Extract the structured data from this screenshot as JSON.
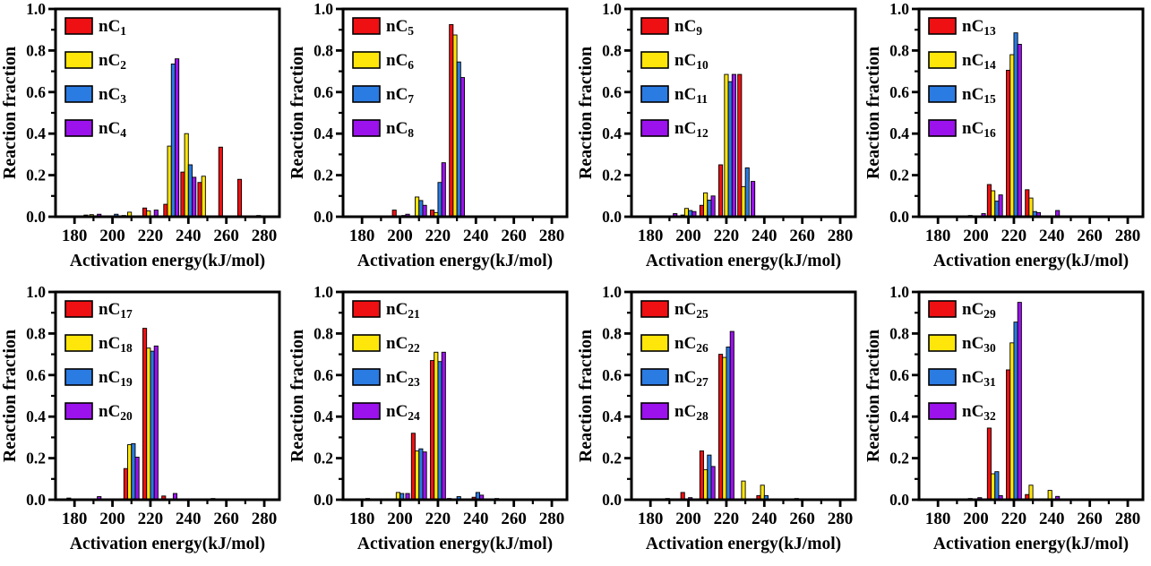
{
  "figure": {
    "description": "Eight-panel bar chart figure: reaction fraction vs activation energy distributions for n-alkanes nC1 through nC32",
    "background_color": "#FFFFFF",
    "text_color": "#000000"
  },
  "chart_data": {
    "type": "bar",
    "xlabel": "Activation energy(kJ/mol)",
    "ylabel": "Reaction fraction",
    "x_range": [
      170,
      288
    ],
    "x_major_ticks": [
      180,
      200,
      220,
      240,
      260,
      280
    ],
    "x_minor_ticks": [
      190,
      210,
      230,
      250,
      270
    ],
    "y_range": [
      0,
      1.0
    ],
    "y_major_ticks": [
      "0.0",
      "0.2",
      "0.4",
      "0.6",
      "0.8",
      "1.0"
    ],
    "y_minor_ticks": [
      0.1,
      0.3,
      0.5,
      0.7,
      0.9
    ],
    "grid": "off",
    "legend_position": "top-left-inside",
    "legend_prefix": "nC",
    "series_colors": [
      "#EE1012",
      "#FFE60A",
      "#2A7BE2",
      "#9B12EC"
    ],
    "bar_outline_color": "#000000",
    "bar_width_kJ": 2.0,
    "bars_format": [
      "x_kJ_per_mol",
      "series_index",
      "reaction_fraction"
    ],
    "panels": [
      {
        "name": "nC1-nC4",
        "legend_subs": [
          "1",
          "2",
          "3",
          "4"
        ],
        "bars": [
          [
            186,
            0,
            0.008
          ],
          [
            189,
            1,
            0.01
          ],
          [
            193,
            3,
            0.012
          ],
          [
            202,
            2,
            0.012
          ],
          [
            206,
            0,
            0.006
          ],
          [
            209,
            1,
            0.022
          ],
          [
            217,
            0,
            0.042
          ],
          [
            219,
            1,
            0.028
          ],
          [
            223,
            3,
            0.032
          ],
          [
            228,
            0,
            0.06
          ],
          [
            230,
            1,
            0.34
          ],
          [
            232,
            2,
            0.735
          ],
          [
            234,
            3,
            0.76
          ],
          [
            237,
            0,
            0.215
          ],
          [
            239,
            1,
            0.4
          ],
          [
            241,
            2,
            0.25
          ],
          [
            243,
            3,
            0.19
          ],
          [
            246,
            0,
            0.165
          ],
          [
            248,
            1,
            0.195
          ],
          [
            257,
            0,
            0.335
          ],
          [
            267,
            0,
            0.18
          ],
          [
            277,
            1,
            0.006
          ]
        ]
      },
      {
        "name": "nC5-nC8",
        "legend_subs": [
          "5",
          "6",
          "7",
          "8"
        ],
        "bars": [
          [
            197,
            0,
            0.032
          ],
          [
            202,
            2,
            0.006
          ],
          [
            204,
            3,
            0.012
          ],
          [
            209,
            1,
            0.095
          ],
          [
            211,
            2,
            0.078
          ],
          [
            213,
            3,
            0.055
          ],
          [
            217,
            0,
            0.032
          ],
          [
            219,
            1,
            0.02
          ],
          [
            221,
            2,
            0.165
          ],
          [
            223,
            3,
            0.26
          ],
          [
            227,
            0,
            0.925
          ],
          [
            229,
            1,
            0.875
          ],
          [
            231,
            2,
            0.745
          ],
          [
            233,
            3,
            0.67
          ]
        ]
      },
      {
        "name": "nC9-nC12",
        "legend_subs": [
          "9",
          "10",
          "11",
          "12"
        ],
        "bars": [
          [
            193,
            3,
            0.015
          ],
          [
            197,
            0,
            0.008
          ],
          [
            199,
            1,
            0.04
          ],
          [
            201,
            2,
            0.03
          ],
          [
            203,
            3,
            0.025
          ],
          [
            207,
            0,
            0.055
          ],
          [
            209,
            1,
            0.115
          ],
          [
            211,
            2,
            0.08
          ],
          [
            213,
            3,
            0.1
          ],
          [
            217,
            0,
            0.25
          ],
          [
            220,
            1,
            0.685
          ],
          [
            222,
            2,
            0.65
          ],
          [
            224,
            3,
            0.685
          ],
          [
            227,
            0,
            0.685
          ],
          [
            229,
            1,
            0.145
          ],
          [
            231,
            2,
            0.235
          ],
          [
            234,
            3,
            0.17
          ]
        ]
      },
      {
        "name": "nC13-nC16",
        "legend_subs": [
          "13",
          "14",
          "15",
          "16"
        ],
        "bars": [
          [
            197,
            0,
            0.006
          ],
          [
            204,
            3,
            0.015
          ],
          [
            207,
            0,
            0.155
          ],
          [
            209,
            1,
            0.125
          ],
          [
            211,
            2,
            0.075
          ],
          [
            213,
            3,
            0.105
          ],
          [
            217,
            0,
            0.705
          ],
          [
            219,
            1,
            0.78
          ],
          [
            221,
            2,
            0.885
          ],
          [
            223,
            3,
            0.83
          ],
          [
            227,
            0,
            0.13
          ],
          [
            229,
            1,
            0.09
          ],
          [
            231,
            2,
            0.025
          ],
          [
            233,
            3,
            0.02
          ],
          [
            243,
            3,
            0.03
          ]
        ]
      },
      {
        "name": "nC17-nC20",
        "legend_subs": [
          "17",
          "18",
          "19",
          "20"
        ],
        "bars": [
          [
            177,
            0,
            0.008
          ],
          [
            193,
            3,
            0.015
          ],
          [
            207,
            0,
            0.15
          ],
          [
            209,
            1,
            0.265
          ],
          [
            211,
            2,
            0.27
          ],
          [
            213,
            3,
            0.205
          ],
          [
            217,
            0,
            0.825
          ],
          [
            219,
            1,
            0.73
          ],
          [
            221,
            2,
            0.715
          ],
          [
            223,
            3,
            0.74
          ],
          [
            227,
            0,
            0.018
          ],
          [
            233,
            3,
            0.03
          ],
          [
            253,
            0,
            0.006
          ]
        ]
      },
      {
        "name": "nC21-nC24",
        "legend_subs": [
          "21",
          "22",
          "23",
          "24"
        ],
        "bars": [
          [
            183,
            0,
            0.006
          ],
          [
            199,
            1,
            0.035
          ],
          [
            201,
            2,
            0.03
          ],
          [
            204,
            3,
            0.03
          ],
          [
            207,
            0,
            0.32
          ],
          [
            209,
            1,
            0.235
          ],
          [
            211,
            2,
            0.245
          ],
          [
            213,
            3,
            0.23
          ],
          [
            217,
            0,
            0.67
          ],
          [
            219,
            1,
            0.71
          ],
          [
            221,
            2,
            0.665
          ],
          [
            223,
            3,
            0.71
          ],
          [
            226,
            0,
            0.006
          ],
          [
            231,
            2,
            0.015
          ],
          [
            239,
            0,
            0.012
          ],
          [
            241,
            2,
            0.035
          ],
          [
            243,
            3,
            0.022
          ],
          [
            251,
            2,
            0.006
          ]
        ]
      },
      {
        "name": "nC25-nC28",
        "legend_subs": [
          "25",
          "26",
          "27",
          "28"
        ],
        "bars": [
          [
            189,
            0,
            0.006
          ],
          [
            197,
            0,
            0.035
          ],
          [
            201,
            3,
            0.01
          ],
          [
            207,
            0,
            0.235
          ],
          [
            209,
            1,
            0.145
          ],
          [
            211,
            2,
            0.215
          ],
          [
            213,
            3,
            0.16
          ],
          [
            217,
            0,
            0.7
          ],
          [
            219,
            1,
            0.685
          ],
          [
            221,
            2,
            0.735
          ],
          [
            223,
            3,
            0.81
          ],
          [
            229,
            1,
            0.09
          ],
          [
            237,
            0,
            0.02
          ],
          [
            239,
            1,
            0.07
          ],
          [
            241,
            2,
            0.02
          ],
          [
            257,
            0,
            0.006
          ]
        ]
      },
      {
        "name": "nC29-nC32",
        "legend_subs": [
          "29",
          "30",
          "31",
          "32"
        ],
        "bars": [
          [
            197,
            1,
            0.006
          ],
          [
            202,
            3,
            0.01
          ],
          [
            207,
            0,
            0.345
          ],
          [
            209,
            1,
            0.125
          ],
          [
            211,
            2,
            0.135
          ],
          [
            213,
            3,
            0.02
          ],
          [
            217,
            0,
            0.625
          ],
          [
            219,
            1,
            0.755
          ],
          [
            221,
            2,
            0.855
          ],
          [
            223,
            3,
            0.95
          ],
          [
            227,
            0,
            0.025
          ],
          [
            229,
            1,
            0.07
          ],
          [
            239,
            1,
            0.045
          ],
          [
            243,
            3,
            0.016
          ]
        ]
      }
    ]
  }
}
